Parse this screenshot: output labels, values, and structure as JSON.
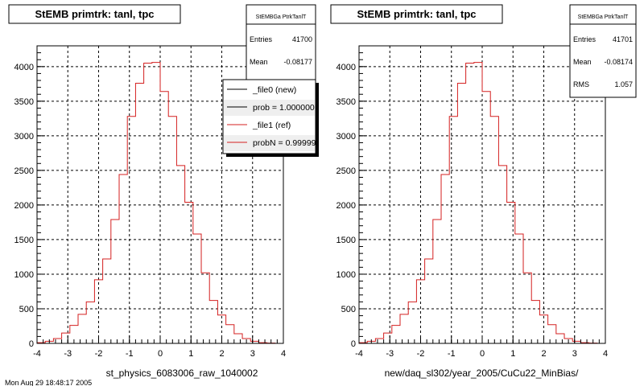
{
  "footer_text": "Mon Aug 29 18:48:17 2005",
  "colors": {
    "background": "#ffffff",
    "frame": "#000000",
    "grid": "#000000",
    "histogram_ref": "#d42020",
    "histogram_new": "#000000",
    "legend_shadow": "#000000"
  },
  "chart_data": [
    {
      "type": "histogram",
      "title": "StEMB primtrk: tanl, tpc",
      "xlabel": "st_physics_6083006_raw_1040002",
      "ylabel": "",
      "xlim": [
        -4,
        4
      ],
      "ylim": [
        0,
        4300
      ],
      "grid": true,
      "x_ticks": [
        "-4",
        "-3",
        "-2",
        "-1",
        "0",
        "1",
        "2",
        "3",
        "4"
      ],
      "y_ticks": [
        "0",
        "500",
        "1000",
        "1500",
        "2000",
        "2500",
        "3000",
        "3500",
        "4000"
      ],
      "bin_edges_start": -4,
      "bin_width": 0.2667,
      "series": [
        {
          "name": "_file1 (ref)",
          "color": "#d42020",
          "values": [
            10,
            30,
            70,
            150,
            260,
            420,
            600,
            920,
            1220,
            1790,
            2440,
            3280,
            3760,
            4050,
            4060,
            3640,
            3280,
            2570,
            2040,
            1580,
            1020,
            620,
            410,
            270,
            140,
            70,
            30,
            10,
            5,
            0
          ]
        }
      ],
      "stats_box": {
        "name": "StEMBGa PtrkTanlT",
        "rows": [
          {
            "label": "Entries",
            "value": "41700"
          },
          {
            "label": "Mean",
            "value": "-0.08177"
          }
        ]
      },
      "legend": {
        "position": "top-right",
        "entries": [
          {
            "label": "_file0 (new)",
            "color": "#000000"
          },
          {
            "label": "prob = 1.000000",
            "color": "#000000"
          },
          {
            "label": "_file1 (ref)",
            "color": "#d42020"
          },
          {
            "label": "probN = 0.99999",
            "color": "#d42020"
          }
        ]
      }
    },
    {
      "type": "histogram",
      "title": "StEMB primtrk: tanl, tpc",
      "xlabel": "new/daq_sl302/year_2005/CuCu22_MinBias/",
      "ylabel": "",
      "xlim": [
        -4,
        4
      ],
      "ylim": [
        0,
        4300
      ],
      "grid": true,
      "x_ticks": [
        "-4",
        "-3",
        "-2",
        "-1",
        "0",
        "1",
        "2",
        "3",
        "4"
      ],
      "y_ticks": [
        "0",
        "500",
        "1000",
        "1500",
        "2000",
        "2500",
        "3000",
        "3500",
        "4000"
      ],
      "bin_edges_start": -4,
      "bin_width": 0.2667,
      "series": [
        {
          "name": "",
          "color": "#d42020",
          "values": [
            10,
            30,
            70,
            150,
            260,
            420,
            600,
            920,
            1220,
            1790,
            2440,
            3280,
            3760,
            4050,
            4060,
            3640,
            3280,
            2570,
            2040,
            1580,
            1020,
            620,
            410,
            270,
            140,
            70,
            30,
            10,
            5,
            0
          ]
        }
      ],
      "stats_box": {
        "name": "StEMBGa PtrkTanlT",
        "rows": [
          {
            "label": "Entries",
            "value": "41701"
          },
          {
            "label": "Mean",
            "value": "-0.08174"
          },
          {
            "label": "RMS",
            "value": "1.057"
          }
        ]
      }
    }
  ]
}
